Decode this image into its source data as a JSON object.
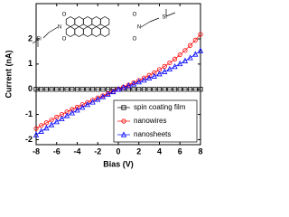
{
  "chart_data": {
    "type": "line",
    "ylabel": "Current (nA)",
    "xlabel": "Bias (V)",
    "x": [
      -8,
      -7.5,
      -7,
      -6.5,
      -6,
      -5.5,
      -5,
      -4.5,
      -4,
      -3.5,
      -3,
      -2.5,
      -2,
      -1.5,
      -1,
      -0.5,
      0,
      0.5,
      1,
      1.5,
      2,
      2.5,
      3,
      3.5,
      4,
      4.5,
      5,
      5.5,
      6,
      6.5,
      7,
      7.5,
      8
    ],
    "series": [
      {
        "name": "spin coating film",
        "color": "#000000",
        "marker": "square",
        "values": [
          0,
          0,
          0,
          0,
          0,
          0,
          0,
          0,
          0,
          0,
          0,
          0,
          0,
          0,
          0,
          0,
          0,
          0,
          0,
          0,
          0,
          0,
          0,
          0,
          0,
          0,
          0,
          0,
          0,
          0,
          0,
          0,
          0
        ]
      },
      {
        "name": "nanowires",
        "color": "#ff0000",
        "marker": "circle",
        "values": [
          -1.56,
          -1.44,
          -1.33,
          -1.22,
          -1.11,
          -1.0,
          -0.9,
          -0.8,
          -0.71,
          -0.61,
          -0.52,
          -0.43,
          -0.34,
          -0.26,
          -0.17,
          -0.09,
          0,
          0.09,
          0.17,
          0.26,
          0.35,
          0.45,
          0.55,
          0.66,
          0.78,
          0.91,
          1.05,
          1.2,
          1.37,
          1.54,
          1.74,
          1.95,
          2.18
        ]
      },
      {
        "name": "nanosheets",
        "color": "#0000ff",
        "marker": "triangle",
        "values": [
          -1.81,
          -1.67,
          -1.54,
          -1.41,
          -1.29,
          -1.17,
          -1.05,
          -0.94,
          -0.83,
          -0.72,
          -0.61,
          -0.51,
          -0.4,
          -0.3,
          -0.2,
          -0.1,
          0,
          0.07,
          0.14,
          0.21,
          0.29,
          0.36,
          0.44,
          0.52,
          0.61,
          0.7,
          0.8,
          0.9,
          1.01,
          1.13,
          1.25,
          1.39,
          1.53
        ]
      }
    ],
    "xlim": [
      -8,
      8
    ],
    "xticks": [
      -8,
      -6,
      -4,
      -2,
      0,
      2,
      4,
      6,
      8
    ],
    "ylim": [
      -2.2,
      3.4
    ],
    "yticks": [
      -2,
      -1,
      0,
      1,
      2
    ],
    "legend": "lower right",
    "inset": {
      "atoms": [
        "N",
        "N",
        "O",
        "O",
        "O",
        "O",
        "Si",
        "Si"
      ]
    }
  }
}
